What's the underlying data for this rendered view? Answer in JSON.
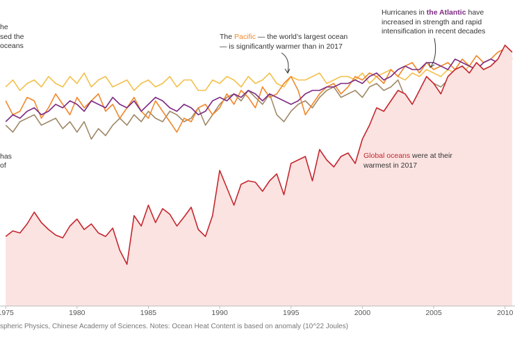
{
  "chart_data": {
    "type": "line",
    "xlim": [
      1974.6,
      2010.7
    ],
    "xticks": [
      1975,
      1980,
      1985,
      1990,
      1995,
      2000,
      2005,
      2010
    ],
    "ylim": [
      0,
      44
    ],
    "x": [
      1975,
      1975.5,
      1976,
      1976.5,
      1977,
      1977.5,
      1978,
      1978.5,
      1979,
      1979.5,
      1980,
      1980.5,
      1981,
      1981.5,
      1982,
      1982.5,
      1983,
      1983.5,
      1984,
      1984.5,
      1985,
      1985.5,
      1986,
      1986.5,
      1987,
      1987.5,
      1988,
      1988.5,
      1989,
      1989.5,
      1990,
      1990.5,
      1991,
      1991.5,
      1992,
      1992.5,
      1993,
      1993.5,
      1994,
      1994.5,
      1995,
      1995.5,
      1996,
      1996.5,
      1997,
      1997.5,
      1998,
      1998.5,
      1999,
      1999.5,
      2000,
      2000.5,
      2001,
      2001.5,
      2002,
      2002.5,
      2003,
      2003.5,
      2004,
      2004.5,
      2005,
      2005.5,
      2006,
      2006.5,
      2007,
      2007.5,
      2008,
      2008.5,
      2009,
      2009.5,
      2010,
      2010.5
    ],
    "series": [
      {
        "color": "#f2c14e",
        "values": [
          31.5,
          32.5,
          31.0,
          32.0,
          32.5,
          31.5,
          33.0,
          32.0,
          31.5,
          33.0,
          32.0,
          33.5,
          31.5,
          32.5,
          33.0,
          31.5,
          32.0,
          32.5,
          31.0,
          32.0,
          32.5,
          31.5,
          32.0,
          33.0,
          31.5,
          32.5,
          32.5,
          31.0,
          31.0,
          32.5,
          32.0,
          33.0,
          32.5,
          31.5,
          33.0,
          32.0,
          32.5,
          33.5,
          32.0,
          31.5,
          33.0,
          32.5,
          32.5,
          33.0,
          33.5,
          32.0,
          32.5,
          33.0,
          33.0,
          32.5,
          33.5,
          32.0,
          33.0,
          33.5,
          34.0,
          33.0,
          32.5,
          33.5,
          33.0,
          34.0,
          33.5,
          33.0,
          34.0,
          33.5,
          33.5,
          34.5,
          34.0,
          33.5,
          34.5,
          34.0,
          35.0,
          34.5
        ]
      },
      {
        "color": "#a08a6a",
        "values": [
          26.0,
          25.0,
          26.5,
          27.0,
          27.5,
          26.0,
          26.5,
          27.0,
          25.5,
          26.5,
          25.0,
          26.5,
          24.0,
          25.5,
          24.5,
          26.0,
          27.0,
          26.0,
          27.5,
          26.5,
          28.0,
          27.0,
          26.5,
          28.0,
          27.5,
          26.5,
          27.0,
          28.5,
          26.0,
          27.5,
          29.0,
          30.0,
          30.5,
          29.5,
          31.0,
          30.0,
          29.0,
          30.5,
          27.5,
          26.5,
          28.0,
          29.0,
          29.5,
          28.5,
          30.0,
          31.0,
          31.5,
          30.0,
          30.5,
          31.0,
          30.0,
          31.5,
          32.0,
          31.0,
          31.5,
          32.5,
          30.0,
          29.0,
          29.5,
          31.0,
          32.0,
          31.5,
          32.5,
          33.0,
          33.5,
          32.5,
          33.0,
          34.0,
          33.5,
          35.0,
          36.0,
          35.5
        ]
      },
      {
        "color": "#f0882c",
        "values": [
          29.5,
          27.5,
          28.0,
          30.0,
          29.5,
          27.0,
          28.5,
          30.5,
          29.0,
          27.5,
          30.0,
          28.5,
          29.5,
          30.5,
          28.0,
          29.0,
          27.0,
          28.5,
          30.0,
          28.0,
          27.0,
          29.5,
          28.0,
          26.5,
          25.0,
          27.0,
          26.5,
          28.5,
          29.0,
          27.5,
          28.5,
          30.5,
          29.0,
          31.0,
          30.0,
          28.5,
          31.5,
          30.0,
          30.5,
          32.0,
          33.0,
          31.0,
          27.5,
          29.0,
          30.5,
          31.5,
          32.0,
          30.5,
          31.5,
          33.0,
          32.5,
          33.5,
          33.0,
          32.0,
          34.0,
          33.0,
          34.5,
          35.0,
          33.5,
          35.0,
          34.0,
          34.5,
          35.0,
          34.0,
          35.5,
          34.5,
          36.0,
          35.0,
          35.5,
          36.5,
          37.0,
          35.5
        ]
      },
      {
        "color": "#7e2b82",
        "values": [
          26.5,
          27.5,
          27.0,
          28.0,
          28.5,
          27.5,
          28.0,
          29.0,
          28.5,
          29.5,
          29.0,
          28.0,
          29.5,
          29.0,
          28.5,
          30.0,
          29.0,
          28.5,
          29.5,
          28.0,
          29.0,
          30.0,
          29.5,
          28.5,
          28.0,
          29.0,
          28.5,
          27.5,
          28.0,
          29.5,
          30.0,
          29.5,
          30.5,
          30.0,
          31.0,
          30.5,
          29.5,
          30.5,
          30.0,
          29.5,
          29.0,
          29.5,
          30.5,
          31.0,
          31.0,
          31.5,
          31.5,
          32.0,
          32.0,
          32.5,
          32.0,
          33.0,
          33.5,
          32.5,
          33.0,
          34.0,
          34.5,
          34.0,
          34.0,
          35.0,
          35.0,
          34.5,
          34.0,
          35.5,
          35.0,
          34.5,
          34.0,
          35.0,
          35.5,
          35.0,
          36.0,
          35.5
        ]
      },
      {
        "color": "#c4262e",
        "area": "#fbe3e1",
        "values": [
          10.0,
          10.8,
          10.5,
          11.8,
          13.5,
          12.0,
          11.0,
          10.2,
          9.8,
          11.5,
          12.5,
          11.0,
          11.8,
          10.5,
          10.0,
          11.2,
          8.0,
          6.0,
          13.0,
          11.5,
          14.5,
          12.0,
          14.0,
          13.2,
          11.5,
          12.8,
          14.2,
          11.0,
          10.0,
          13.0,
          19.5,
          17.0,
          14.5,
          17.5,
          18.0,
          17.8,
          16.5,
          18.0,
          19.0,
          16.0,
          20.5,
          21.0,
          21.5,
          18.0,
          22.5,
          21.0,
          20.0,
          21.5,
          22.0,
          20.5,
          24.0,
          26.0,
          28.5,
          28.0,
          29.5,
          31.0,
          30.5,
          29.0,
          31.0,
          33.0,
          32.0,
          30.5,
          33.0,
          34.0,
          34.5,
          33.5,
          35.0,
          34.0,
          34.5,
          35.5,
          37.5,
          36.5
        ]
      }
    ],
    "annotations": {
      "left_top": [
        "he",
        "sed the",
        "oceans"
      ],
      "left_mid": [
        "has",
        "of"
      ],
      "pacific": {
        "pre": "The ",
        "name": "Pacific",
        "post": " — the world’s largest ocean",
        "line2": "— is significantly warmer than in 2017"
      },
      "atlantic": {
        "pre": "Hurricanes in ",
        "name": "the Atlantic",
        "post": " have",
        "line2": "increased in strength and rapid",
        "line3": "intensification in recent decades"
      },
      "global": {
        "name": "Global oceans",
        "post": " were at their",
        "line2": "warmest in 2017"
      }
    },
    "footer": "spheric Physics, Chinese Academy of Sciences. Notes: Ocean Heat Content is based on anomaly (10^22 Joules)"
  }
}
